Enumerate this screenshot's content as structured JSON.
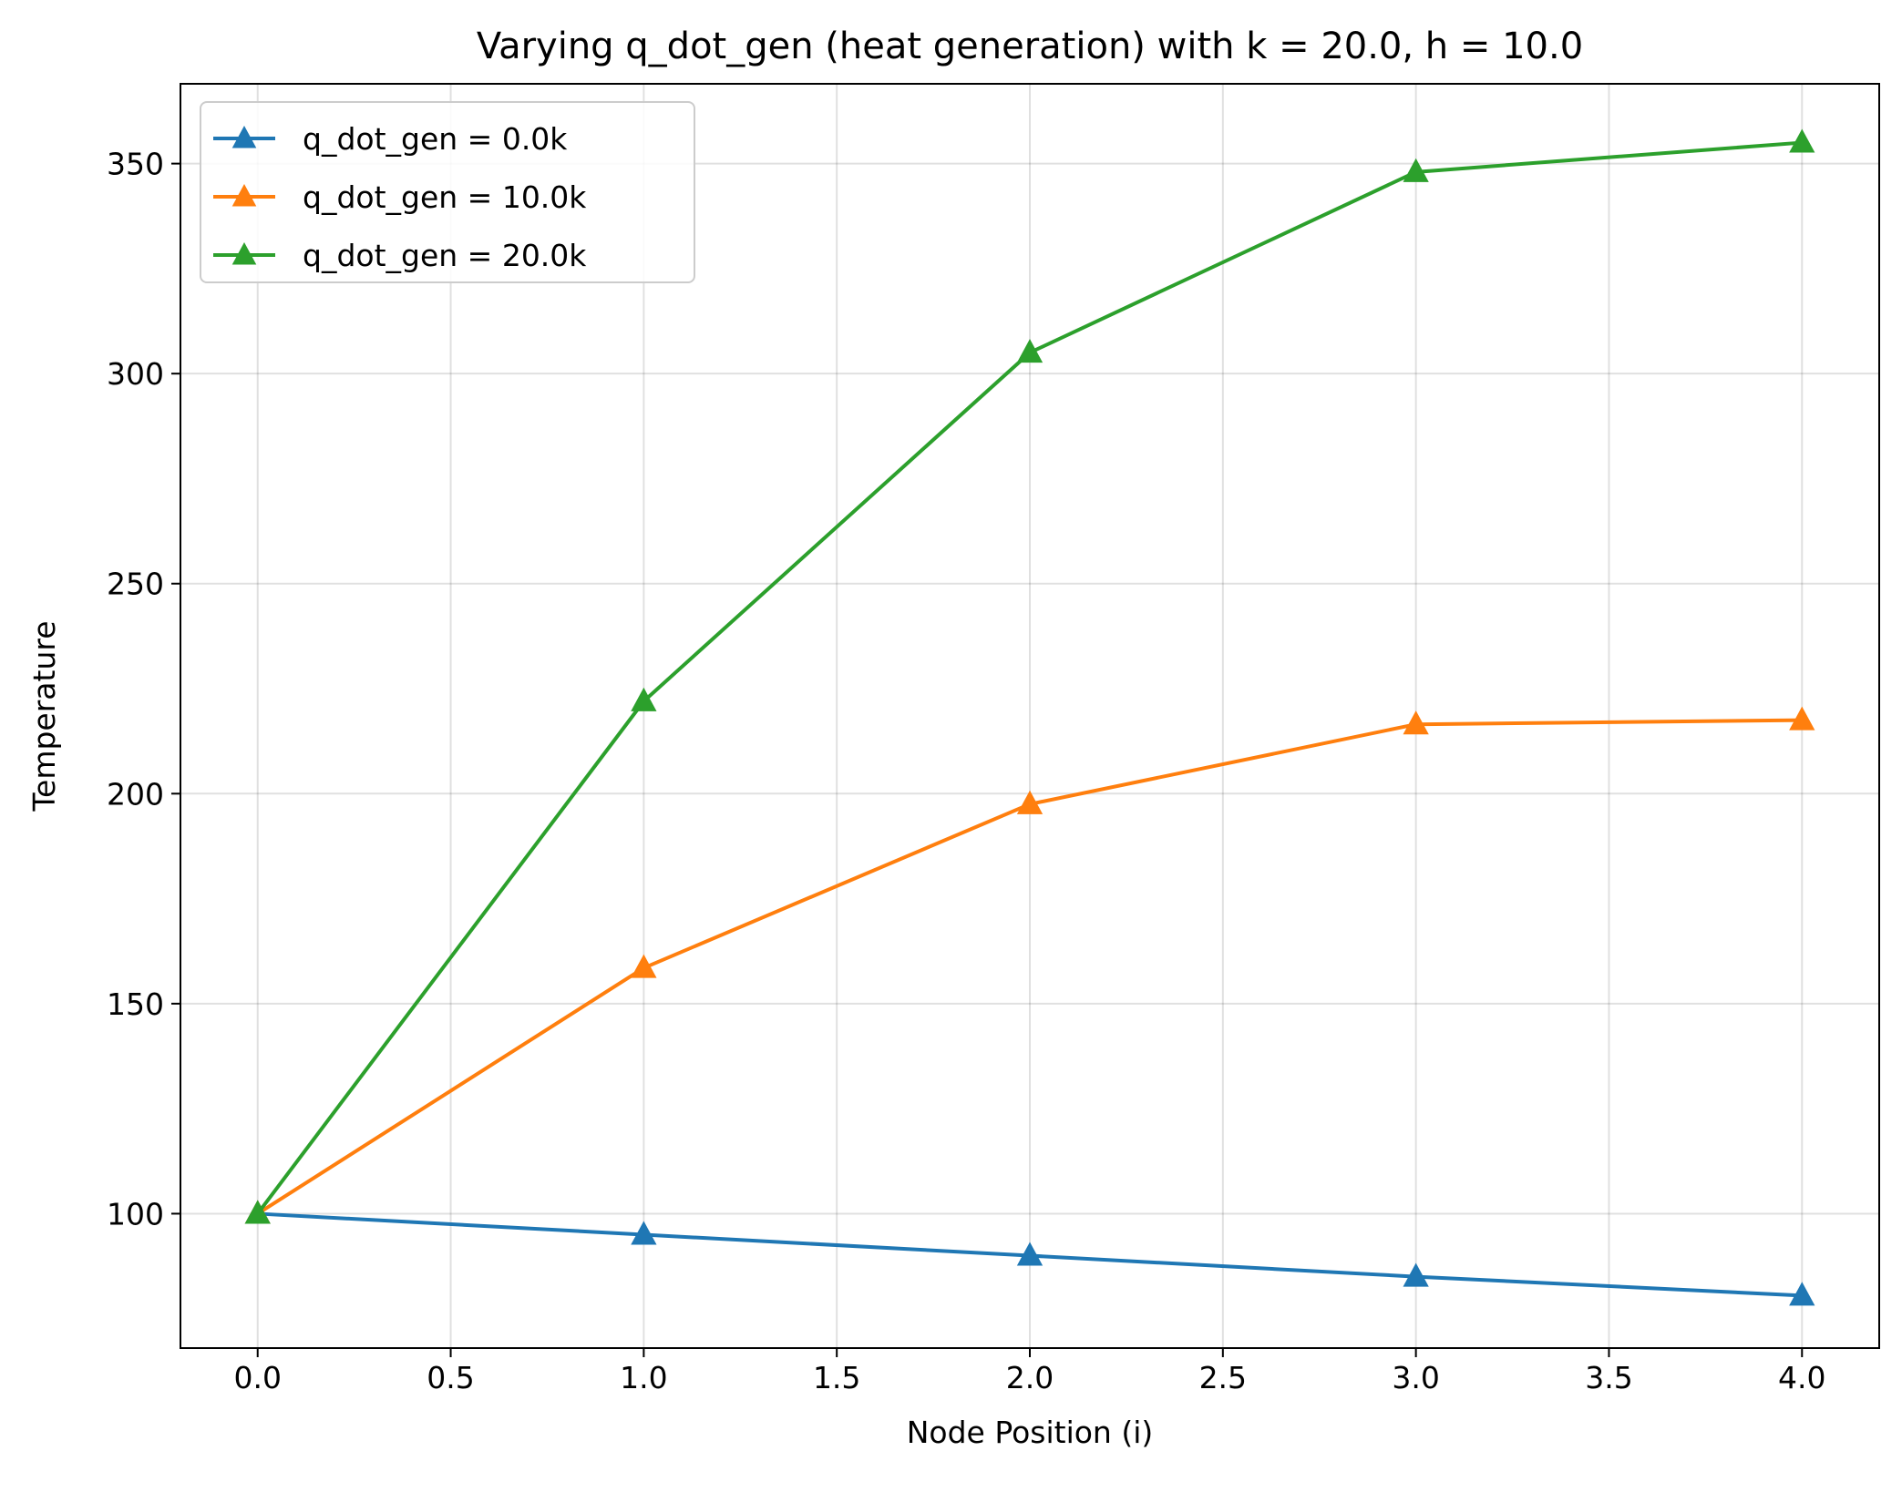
{
  "chart_data": {
    "type": "line",
    "title": "Varying q_dot_gen (heat generation) with k = 20.0, h = 10.0",
    "xlabel": "Node Position (i)",
    "ylabel": "Temperature",
    "xlim": [
      -0.2,
      4.2
    ],
    "ylim": [
      68,
      369
    ],
    "xticks": [
      0.0,
      0.5,
      1.0,
      1.5,
      2.0,
      2.5,
      3.0,
      3.5,
      4.0
    ],
    "xtick_labels": [
      "0.0",
      "0.5",
      "1.0",
      "1.5",
      "2.0",
      "2.5",
      "3.0",
      "3.5",
      "4.0"
    ],
    "yticks": [
      100,
      150,
      200,
      250,
      300,
      350
    ],
    "ytick_labels": [
      "100",
      "150",
      "200",
      "250",
      "300",
      "350"
    ],
    "grid": true,
    "legend_position": "top-left",
    "marker": "triangle-up",
    "x": [
      0,
      1,
      2,
      3,
      4
    ],
    "series": [
      {
        "name": "q_dot_gen = 0.0k",
        "color": "#1f77b4",
        "values": [
          100,
          95,
          90,
          85,
          80.5
        ]
      },
      {
        "name": "q_dot_gen = 10.0k",
        "color": "#ff7f0e",
        "values": [
          100,
          158.5,
          197.5,
          216.5,
          217.5
        ]
      },
      {
        "name": "q_dot_gen = 20.0k",
        "color": "#2ca02c",
        "values": [
          100,
          222,
          305,
          348,
          355
        ]
      }
    ]
  }
}
